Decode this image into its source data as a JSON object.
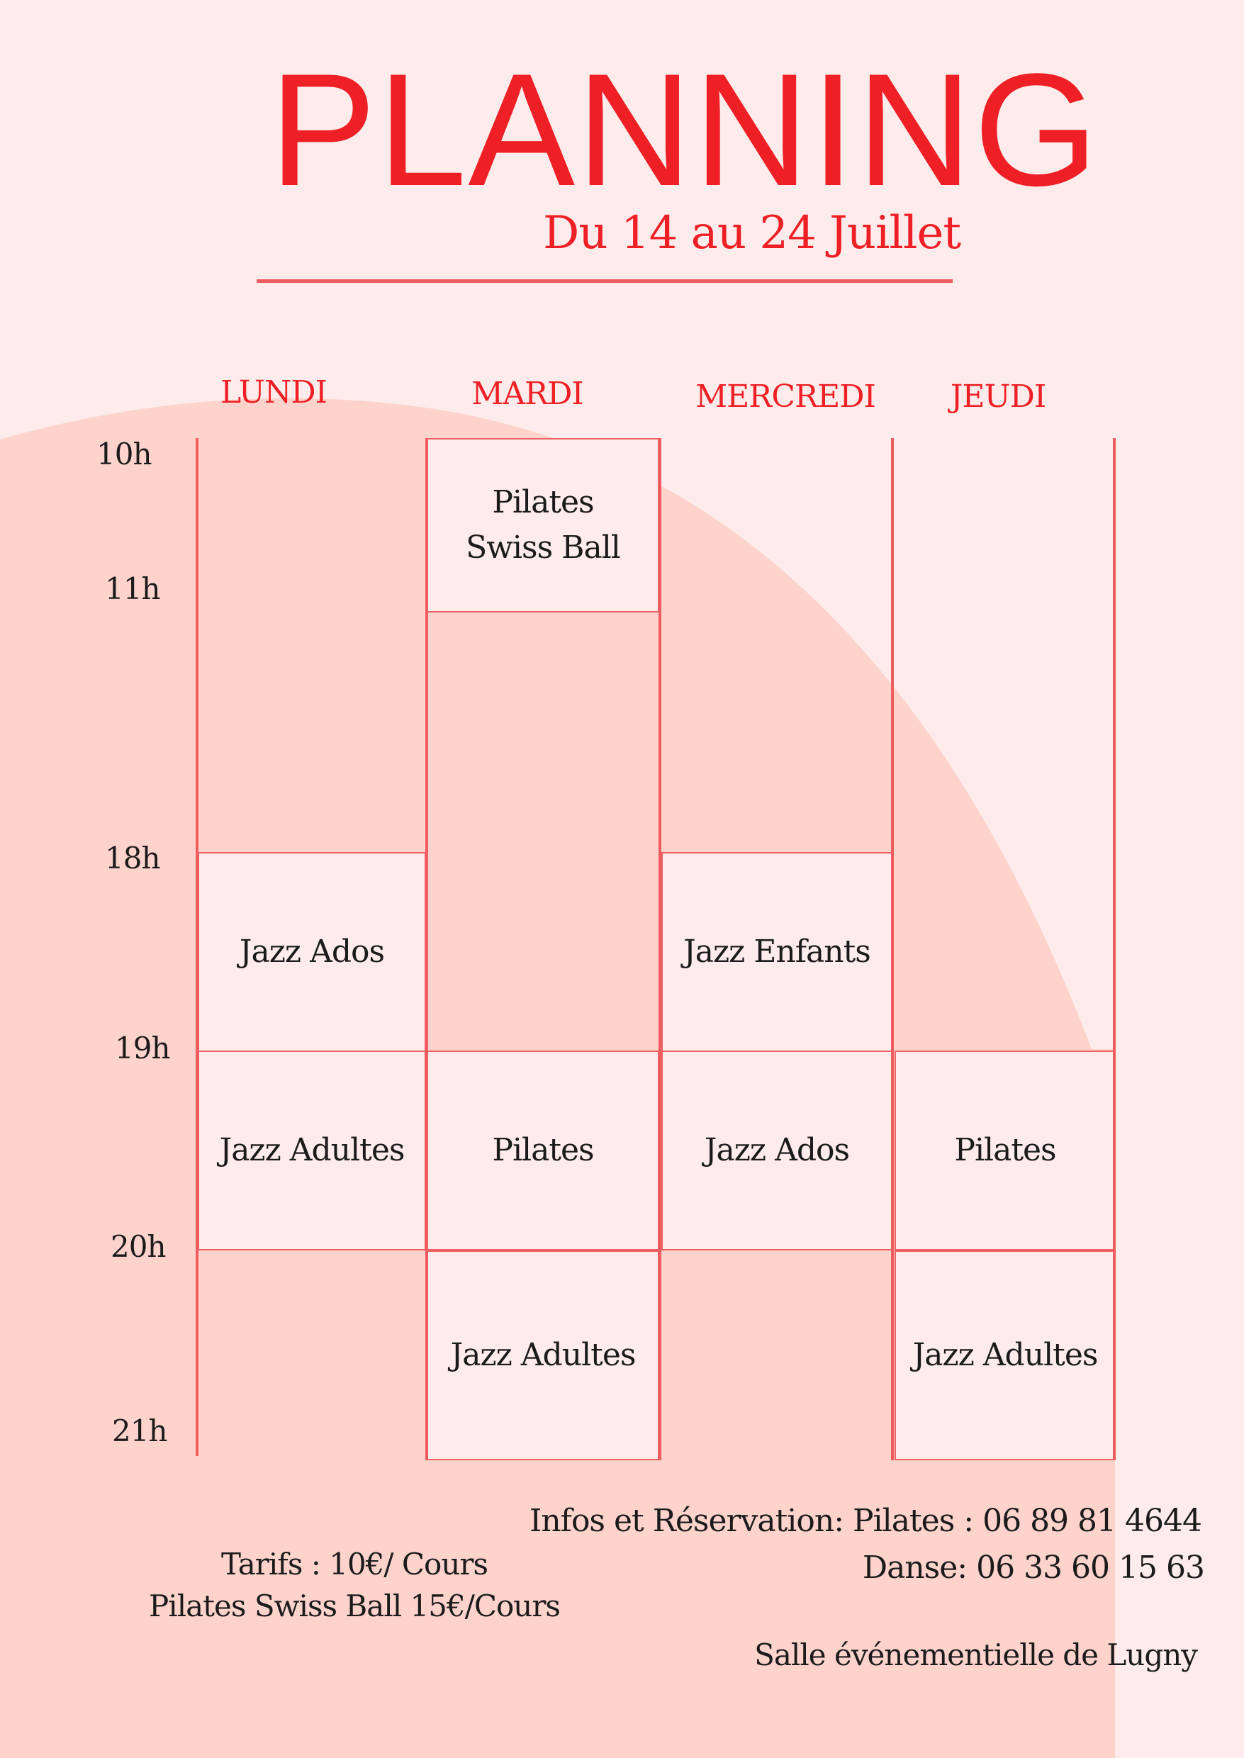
{
  "header": {
    "title": "PLANNING",
    "subtitle": "Du 14 au 24 Juillet"
  },
  "colors": {
    "accent": "#ee2026",
    "lines": "#ef5c5f",
    "background": "#fdeceb",
    "shape": "#fdd3cc"
  },
  "days": [
    "LUNDI",
    "MARDI",
    "MERCREDI",
    "JEUDI"
  ],
  "hours": [
    "10h",
    "11h",
    "18h",
    "19h",
    "20h",
    "21h"
  ],
  "sessions": {
    "mardi_10h": "Pilates\nSwiss Ball",
    "lundi_18h": "Jazz Ados",
    "mercredi_18h": "Jazz Enfants",
    "lundi_19h": "Jazz Adultes",
    "mardi_19h": "Pilates",
    "mercredi_19h": "Jazz Ados",
    "jeudi_19h": "Pilates",
    "mardi_20h": "Jazz Adultes",
    "jeudi_20h": "Jazz Adultes"
  },
  "info": {
    "reservation_line": "Infos et Réservation: Pilates : 06 89 81 4644",
    "danse_line": "Danse: 06 33 60 15 63",
    "venue": "Salle événementielle de Lugny"
  },
  "tarifs": {
    "line1": "Tarifs : 10€/ Cours",
    "line2": "Pilates Swiss Ball 15€/Cours"
  }
}
